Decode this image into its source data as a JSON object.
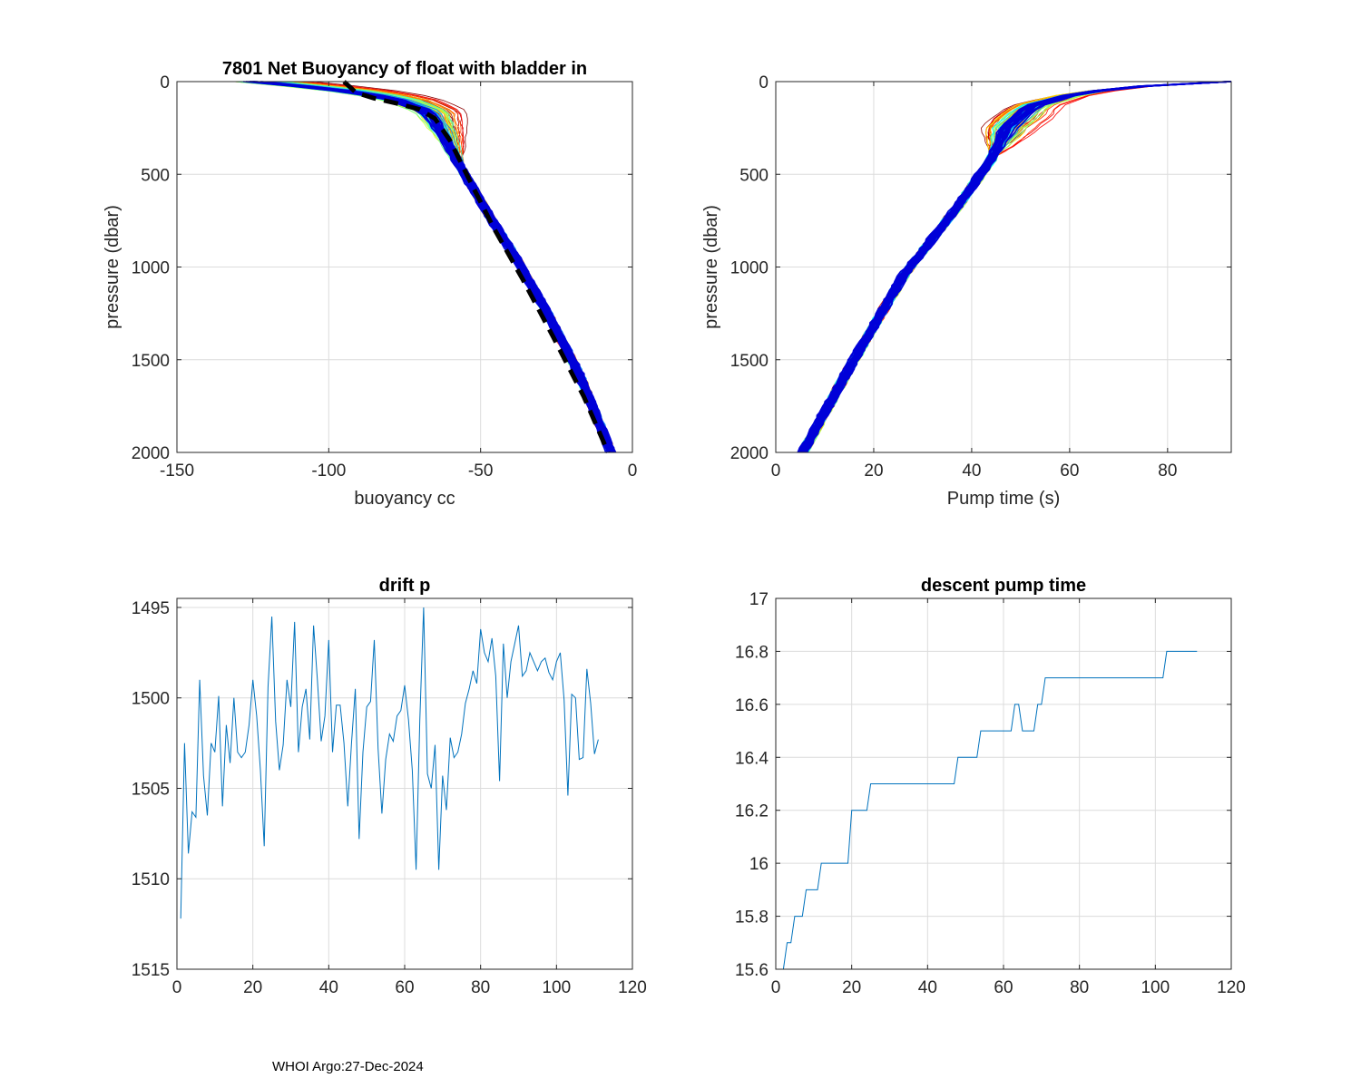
{
  "footer": "WHOI Argo:27-Dec-2024",
  "colors": {
    "axis": "#262626",
    "grid": "#dcdcdc",
    "series_blue": "#0072BD",
    "dark_blue": "#0000d8",
    "mean_curve": "#000000"
  },
  "chart_data": [
    {
      "id": "buoyancy",
      "type": "line",
      "title": "7801 Net Buoyancy of float with bladder in",
      "xlabel": "buoyancy cc",
      "ylabel": "pressure (dbar)",
      "xlim": [
        -150,
        0
      ],
      "ylim": [
        0,
        2000
      ],
      "y_reversed": true,
      "grid": true,
      "xticks": [
        -150,
        -100,
        -50,
        0
      ],
      "yticks": [
        0,
        500,
        1000,
        1500,
        2000
      ],
      "xtick_labels": [
        "-150",
        "-100",
        "-50",
        "0"
      ],
      "ytick_labels": [
        "0",
        "500",
        "1000",
        "1500",
        "2000"
      ],
      "profile_count": 111,
      "profile_colormap": "jet (early profiles warm, late profiles dark blue)",
      "typical_profile": {
        "x": [
          -126,
          -100,
          -80,
          -68,
          -62,
          -56,
          -48,
          -38,
          -28,
          -18,
          -7
        ],
        "y": [
          0,
          40,
          90,
          160,
          300,
          480,
          700,
          960,
          1250,
          1560,
          2000
        ]
      },
      "mean_curve": {
        "x": [
          -95,
          -91,
          -85,
          -77,
          -70,
          -65,
          -60,
          -54,
          -46,
          -36,
          -26,
          -16,
          -8
        ],
        "y": [
          0,
          60,
          90,
          120,
          150,
          200,
          320,
          520,
          780,
          1070,
          1380,
          1700,
          2000
        ]
      }
    },
    {
      "id": "pump",
      "type": "line",
      "title": "",
      "xlabel": "Pump time (s)",
      "ylabel": "pressure (dbar)",
      "xlim": [
        0,
        93
      ],
      "ylim": [
        0,
        2000
      ],
      "y_reversed": true,
      "grid": true,
      "xticks": [
        0,
        20,
        40,
        60,
        80
      ],
      "yticks": [
        0,
        500,
        1000,
        1500,
        2000
      ],
      "xtick_labels": [
        "0",
        "20",
        "40",
        "60",
        "80"
      ],
      "ytick_labels": [
        "0",
        "500",
        "1000",
        "1500",
        "2000"
      ],
      "profile_count": 111,
      "profile_colormap": "jet (early profiles warm, late profiles dark blue)",
      "typical_profile": {
        "x": [
          5.5,
          16,
          26,
          37,
          44,
          47,
          52,
          62,
          75,
          93
        ],
        "y": [
          2000,
          1500,
          1050,
          680,
          420,
          250,
          130,
          60,
          25,
          0
        ]
      }
    },
    {
      "id": "drift",
      "type": "line",
      "title": "drift p",
      "xlabel": "",
      "ylabel": "",
      "xlim": [
        0,
        120
      ],
      "ylim": [
        1495,
        1515
      ],
      "y_reversed": true,
      "ytick_values": [
        1495,
        1500,
        1505,
        1510,
        1515
      ],
      "y_extent": [
        1494.5,
        1515
      ],
      "grid": true,
      "xticks": [
        0,
        20,
        40,
        60,
        80,
        100,
        120
      ],
      "xtick_labels": [
        "0",
        "20",
        "40",
        "60",
        "80",
        "100",
        "120"
      ],
      "ytick_labels": [
        "1495",
        "1500",
        "1505",
        "1510",
        "1515"
      ],
      "series": [
        {
          "name": "drift p",
          "x": [
            1,
            2,
            3,
            4,
            5,
            6,
            7,
            8,
            9,
            10,
            11,
            12,
            13,
            14,
            15,
            16,
            17,
            18,
            19,
            20,
            21,
            22,
            23,
            24,
            25,
            26,
            27,
            28,
            29,
            30,
            31,
            32,
            33,
            34,
            35,
            36,
            37,
            38,
            39,
            40,
            41,
            42,
            43,
            44,
            45,
            46,
            47,
            48,
            49,
            50,
            51,
            52,
            53,
            54,
            55,
            56,
            57,
            58,
            59,
            60,
            61,
            62,
            63,
            64,
            65,
            66,
            67,
            68,
            69,
            70,
            71,
            72,
            73,
            74,
            75,
            76,
            77,
            78,
            79,
            80,
            81,
            82,
            83,
            84,
            85,
            86,
            87,
            88,
            89,
            90,
            91,
            92,
            93,
            94,
            95,
            96,
            97,
            98,
            99,
            100,
            101,
            102,
            103,
            104,
            105,
            106,
            107,
            108,
            109,
            110,
            111
          ],
          "values": [
            1512.2,
            1502.5,
            1508.6,
            1506.3,
            1506.6,
            1499.0,
            1504.3,
            1506.5,
            1502.5,
            1503.0,
            1499.9,
            1506.0,
            1501.5,
            1503.6,
            1500.0,
            1503.0,
            1503.3,
            1503.0,
            1501.5,
            1499.0,
            1501.0,
            1504.0,
            1508.2,
            1499.4,
            1495.5,
            1501.3,
            1504.0,
            1502.6,
            1499.0,
            1500.5,
            1495.8,
            1503.0,
            1500.5,
            1499.5,
            1502.3,
            1496.0,
            1499.0,
            1502.4,
            1501.0,
            1496.8,
            1503.0,
            1500.4,
            1500.4,
            1502.5,
            1506.0,
            1502.5,
            1499.5,
            1507.8,
            1503.0,
            1500.5,
            1500.2,
            1496.8,
            1502.8,
            1506.4,
            1503.4,
            1502.0,
            1502.4,
            1501.0,
            1500.7,
            1499.3,
            1501.2,
            1504.0,
            1509.5,
            1501.2,
            1495.0,
            1504.2,
            1505.0,
            1502.6,
            1509.5,
            1504.3,
            1506.2,
            1502.2,
            1503.3,
            1503.0,
            1502.0,
            1500.3,
            1499.5,
            1498.5,
            1499.2,
            1496.2,
            1497.5,
            1498.0,
            1496.7,
            1498.8,
            1504.6,
            1497.0,
            1500.0,
            1498.0,
            1497.0,
            1496.0,
            1498.8,
            1498.5,
            1497.5,
            1498.0,
            1498.5,
            1498.0,
            1497.8,
            1498.6,
            1499.0,
            1498.0,
            1497.5,
            1500.1,
            1505.4,
            1499.8,
            1500.0,
            1503.4,
            1503.3,
            1498.4,
            1500.3,
            1503.1,
            1502.3
          ]
        }
      ]
    },
    {
      "id": "descent",
      "type": "line",
      "title": "descent pump time",
      "xlabel": "",
      "ylabel": "",
      "xlim": [
        0,
        120
      ],
      "ylim": [
        15.6,
        17
      ],
      "y_reversed": false,
      "grid": true,
      "xticks": [
        0,
        20,
        40,
        60,
        80,
        100,
        120
      ],
      "yticks": [
        15.6,
        15.8,
        16,
        16.2,
        16.4,
        16.6,
        16.8,
        17
      ],
      "xtick_labels": [
        "0",
        "20",
        "40",
        "60",
        "80",
        "100",
        "120"
      ],
      "ytick_labels": [
        "15.6",
        "15.8",
        "16",
        "16.2",
        "16.4",
        "16.6",
        "16.8",
        "17"
      ],
      "series": [
        {
          "name": "descent pump time",
          "x": [
            1,
            2,
            3,
            4,
            5,
            6,
            7,
            8,
            9,
            10,
            11,
            12,
            13,
            14,
            15,
            16,
            17,
            18,
            19,
            20,
            21,
            22,
            23,
            24,
            25,
            26,
            27,
            28,
            29,
            30,
            31,
            32,
            33,
            34,
            35,
            36,
            37,
            38,
            39,
            40,
            41,
            42,
            43,
            44,
            45,
            46,
            47,
            48,
            49,
            50,
            51,
            52,
            53,
            54,
            55,
            56,
            57,
            58,
            59,
            60,
            61,
            62,
            63,
            64,
            65,
            66,
            67,
            68,
            69,
            70,
            71,
            72,
            73,
            74,
            75,
            76,
            77,
            78,
            79,
            80,
            81,
            82,
            83,
            84,
            85,
            86,
            87,
            88,
            89,
            90,
            91,
            92,
            93,
            94,
            95,
            96,
            97,
            98,
            99,
            100,
            101,
            102,
            103,
            104,
            105,
            106,
            107,
            108,
            109,
            110,
            111
          ],
          "values": [
            15.6,
            15.6,
            15.7,
            15.7,
            15.8,
            15.8,
            15.8,
            15.9,
            15.9,
            15.9,
            15.9,
            16.0,
            16.0,
            16.0,
            16.0,
            16.0,
            16.0,
            16.0,
            16.0,
            16.2,
            16.2,
            16.2,
            16.2,
            16.2,
            16.3,
            16.3,
            16.3,
            16.3,
            16.3,
            16.3,
            16.3,
            16.3,
            16.3,
            16.3,
            16.3,
            16.3,
            16.3,
            16.3,
            16.3,
            16.3,
            16.3,
            16.3,
            16.3,
            16.3,
            16.3,
            16.3,
            16.3,
            16.4,
            16.4,
            16.4,
            16.4,
            16.4,
            16.4,
            16.5,
            16.5,
            16.5,
            16.5,
            16.5,
            16.5,
            16.5,
            16.5,
            16.5,
            16.6,
            16.6,
            16.5,
            16.5,
            16.5,
            16.5,
            16.6,
            16.6,
            16.7,
            16.7,
            16.7,
            16.7,
            16.7,
            16.7,
            16.7,
            16.7,
            16.7,
            16.7,
            16.7,
            16.7,
            16.7,
            16.7,
            16.7,
            16.7,
            16.7,
            16.7,
            16.7,
            16.7,
            16.7,
            16.7,
            16.7,
            16.7,
            16.7,
            16.7,
            16.7,
            16.7,
            16.7,
            16.7,
            16.7,
            16.7,
            16.8,
            16.8,
            16.8,
            16.8,
            16.8,
            16.8,
            16.8,
            16.8,
            16.8
          ]
        }
      ]
    }
  ]
}
